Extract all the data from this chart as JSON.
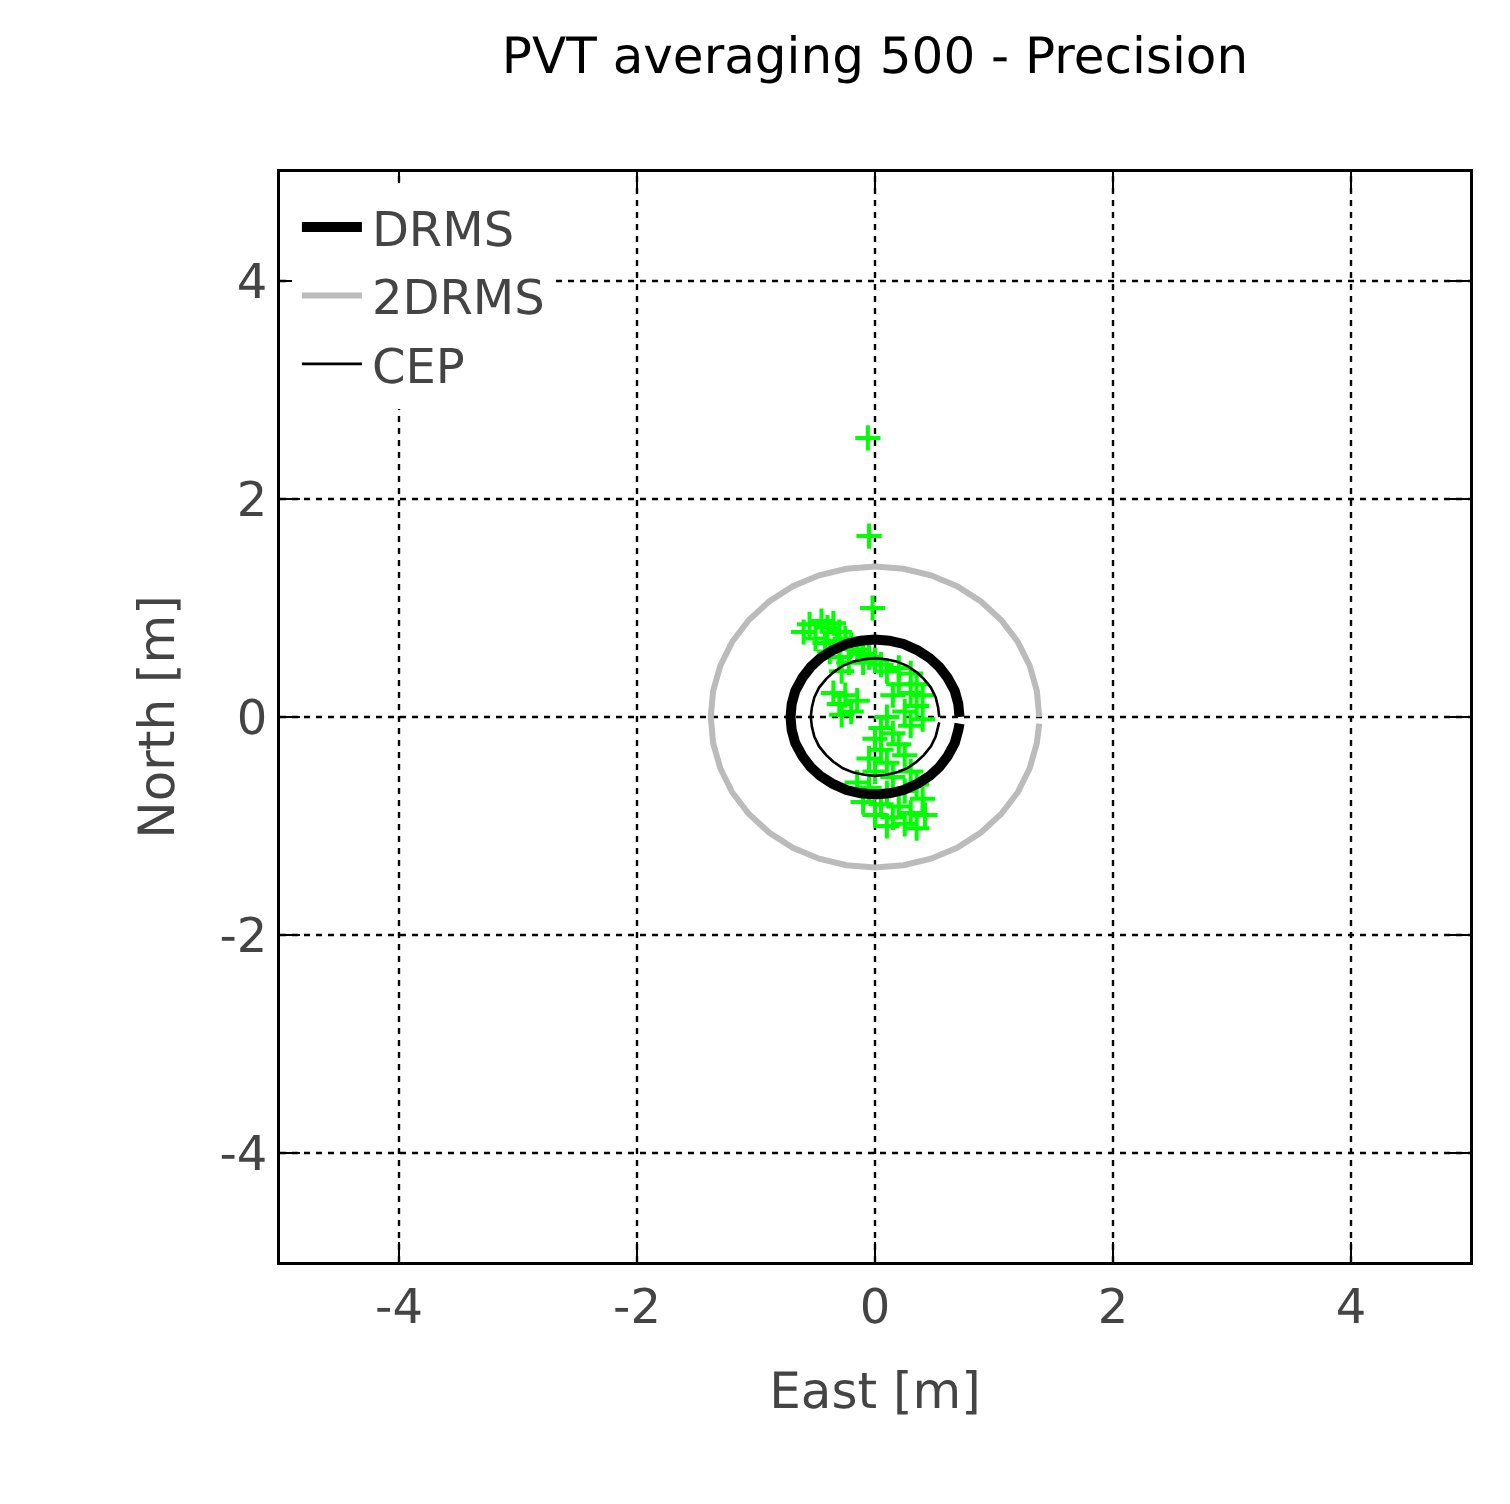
{
  "chart_data": {
    "type": "line",
    "title": "PVT averaging 500 - Precision",
    "xlabel": "East [m]",
    "ylabel": "North [m]",
    "xlim": [
      -5,
      5
    ],
    "ylim": [
      -5,
      5
    ],
    "xticks": [
      -4,
      -2,
      0,
      2,
      4
    ],
    "yticks": [
      -4,
      -2,
      0,
      2,
      4
    ],
    "grid": true,
    "legend": "top left",
    "series": [
      {
        "type": "scatter",
        "color": "#00ff00",
        "marker": "cross",
        "x": [
          -0.06,
          -0.05,
          -0.02,
          -0.6,
          -0.55,
          -0.45,
          -0.4,
          -0.35,
          -0.3,
          -0.5,
          -0.42,
          -0.32,
          -0.25,
          -0.2,
          -0.15,
          -0.1,
          -0.05,
          -0.38,
          -0.3,
          -0.22,
          -0.28,
          -0.1,
          0.0,
          0.05,
          -0.35,
          -0.3,
          -0.25,
          -0.2,
          -0.28,
          -0.15,
          0.1,
          0.2,
          0.3,
          0.35,
          0.4,
          0.3,
          0.2,
          0.15,
          0.35,
          0.25,
          0.4,
          0.3,
          0.1,
          0.05,
          0.15,
          0.0,
          0.05,
          0.2,
          -0.05,
          0.1,
          0.25,
          0.0,
          0.15,
          0.3,
          -0.15,
          -0.05,
          0.1,
          0.25,
          0.35,
          -0.1,
          0.05,
          0.2,
          0.4,
          0.0,
          0.15,
          0.3,
          0.42,
          0.1,
          0.25,
          0.35
        ],
        "values": [
          2.56,
          1.66,
          1.0,
          0.78,
          0.85,
          0.88,
          0.82,
          0.86,
          0.78,
          0.72,
          0.68,
          0.7,
          0.72,
          0.66,
          0.62,
          0.58,
          0.55,
          0.6,
          0.55,
          0.5,
          0.42,
          0.5,
          0.52,
          0.48,
          0.22,
          0.12,
          0.2,
          0.05,
          0.02,
          0.15,
          0.42,
          0.45,
          0.4,
          0.3,
          0.2,
          0.22,
          0.3,
          0.2,
          0.1,
          0.05,
          -0.02,
          -0.08,
          0.0,
          -0.1,
          -0.15,
          -0.2,
          -0.3,
          -0.25,
          -0.38,
          -0.42,
          -0.35,
          -0.5,
          -0.55,
          -0.5,
          -0.6,
          -0.65,
          -0.7,
          -0.68,
          -0.62,
          -0.78,
          -0.8,
          -0.82,
          -0.75,
          -0.9,
          -0.92,
          -0.88,
          -0.9,
          -1.0,
          -0.98,
          -1.02
        ]
      },
      {
        "name": "DRMS",
        "color": "#000000",
        "x": [
          0.71,
          0.7,
          0.67,
          0.61,
          0.54,
          0.46,
          0.36,
          0.24,
          0.12,
          0,
          -0.12,
          -0.24,
          -0.36,
          -0.46,
          -0.54,
          -0.61,
          -0.67,
          -0.7,
          -0.71,
          -0.7,
          -0.67,
          -0.61,
          -0.54,
          -0.46,
          -0.36,
          -0.24,
          -0.12,
          0,
          0.12,
          0.24,
          0.36,
          0.46,
          0.54,
          0.61,
          0.67,
          0.7,
          0.71
        ],
        "values": [
          0,
          0.12,
          0.24,
          0.36,
          0.46,
          0.54,
          0.61,
          0.67,
          0.7,
          0.71,
          0.7,
          0.67,
          0.61,
          0.54,
          0.46,
          0.36,
          0.24,
          0.12,
          0,
          -0.12,
          -0.24,
          -0.36,
          -0.46,
          -0.54,
          -0.61,
          -0.67,
          -0.7,
          -0.71,
          -0.7,
          -0.67,
          -0.61,
          -0.54,
          -0.46,
          -0.36,
          -0.24,
          -0.12,
          -0.06
        ]
      },
      {
        "name": "2DRMS",
        "color": "#bbbbbb",
        "x": [
          1.38,
          1.36,
          1.3,
          1.2,
          1.06,
          0.89,
          0.69,
          0.47,
          0.24,
          0,
          -0.24,
          -0.47,
          -0.69,
          -0.89,
          -1.06,
          -1.2,
          -1.3,
          -1.36,
          -1.38,
          -1.36,
          -1.3,
          -1.2,
          -1.06,
          -0.89,
          -0.69,
          -0.47,
          -0.24,
          0,
          0.24,
          0.47,
          0.69,
          0.89,
          1.06,
          1.2,
          1.3,
          1.36,
          1.38
        ],
        "values": [
          0,
          0.24,
          0.47,
          0.69,
          0.89,
          1.06,
          1.2,
          1.3,
          1.36,
          1.38,
          1.36,
          1.3,
          1.2,
          1.06,
          0.89,
          0.69,
          0.47,
          0.24,
          0,
          -0.24,
          -0.47,
          -0.69,
          -0.89,
          -1.06,
          -1.2,
          -1.3,
          -1.36,
          -1.38,
          -1.36,
          -1.3,
          -1.2,
          -1.06,
          -0.89,
          -0.69,
          -0.47,
          -0.24,
          -0.06
        ]
      },
      {
        "name": "CEP",
        "color": "#000000",
        "x": [
          0.54,
          0.53,
          0.51,
          0.47,
          0.41,
          0.35,
          0.27,
          0.18,
          0.09,
          0,
          -0.09,
          -0.18,
          -0.27,
          -0.35,
          -0.41,
          -0.47,
          -0.51,
          -0.53,
          -0.54,
          -0.53,
          -0.51,
          -0.47,
          -0.41,
          -0.35,
          -0.27,
          -0.18,
          -0.09,
          0,
          0.09,
          0.18,
          0.27,
          0.35,
          0.41,
          0.47,
          0.51,
          0.53,
          0.54
        ],
        "values": [
          0,
          0.09,
          0.18,
          0.27,
          0.35,
          0.41,
          0.47,
          0.51,
          0.53,
          0.54,
          0.53,
          0.51,
          0.47,
          0.41,
          0.35,
          0.27,
          0.18,
          0.09,
          0,
          -0.09,
          -0.18,
          -0.27,
          -0.35,
          -0.41,
          -0.47,
          -0.51,
          -0.53,
          -0.54,
          -0.53,
          -0.51,
          -0.47,
          -0.41,
          -0.35,
          -0.27,
          -0.18,
          -0.09,
          -0.05
        ]
      }
    ]
  }
}
